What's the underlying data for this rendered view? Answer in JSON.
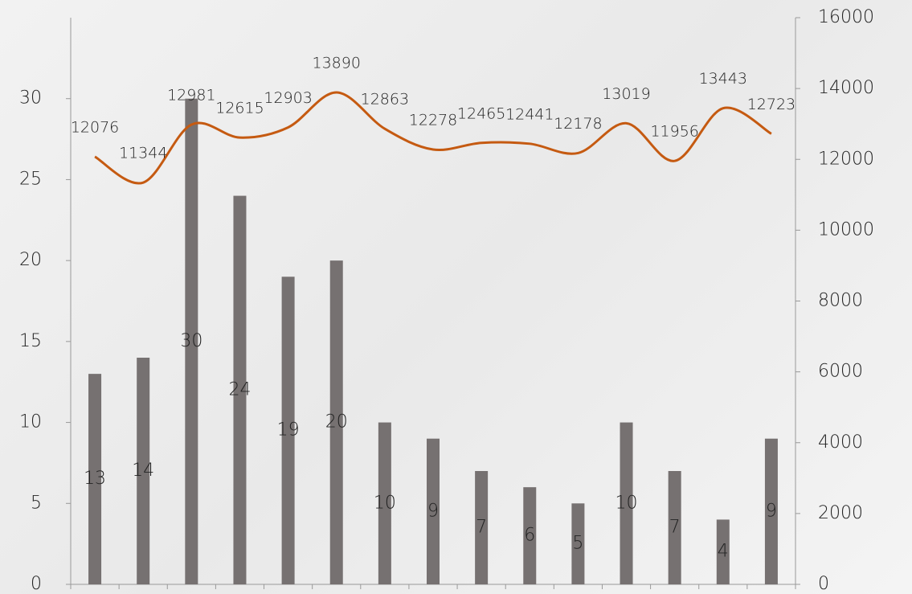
{
  "chart_data": {
    "type": "combo",
    "categories": [
      null,
      null,
      null,
      null,
      null,
      null,
      null,
      null,
      null,
      null,
      null,
      null,
      null,
      null,
      null
    ],
    "series": [
      {
        "type": "bar",
        "color": "#767171",
        "values": [
          13,
          14,
          30,
          24,
          19,
          20,
          10,
          9,
          7,
          6,
          5,
          10,
          7,
          4,
          9
        ]
      },
      {
        "type": "line",
        "axis": "y2",
        "color": "#c55a11",
        "values": [
          12076,
          11344,
          12981,
          12615,
          12903,
          13890,
          12863,
          12278,
          12465,
          12441,
          12178,
          13019,
          11956,
          13443,
          12723
        ]
      }
    ],
    "ylim": [
      0,
      35
    ],
    "yticks": [
      0,
      5,
      10,
      15,
      20,
      25,
      30
    ],
    "y2lim": [
      0,
      16000
    ],
    "y2ticks": [
      0,
      2000,
      4000,
      6000,
      8000,
      10000,
      12000,
      14000,
      16000
    ]
  }
}
